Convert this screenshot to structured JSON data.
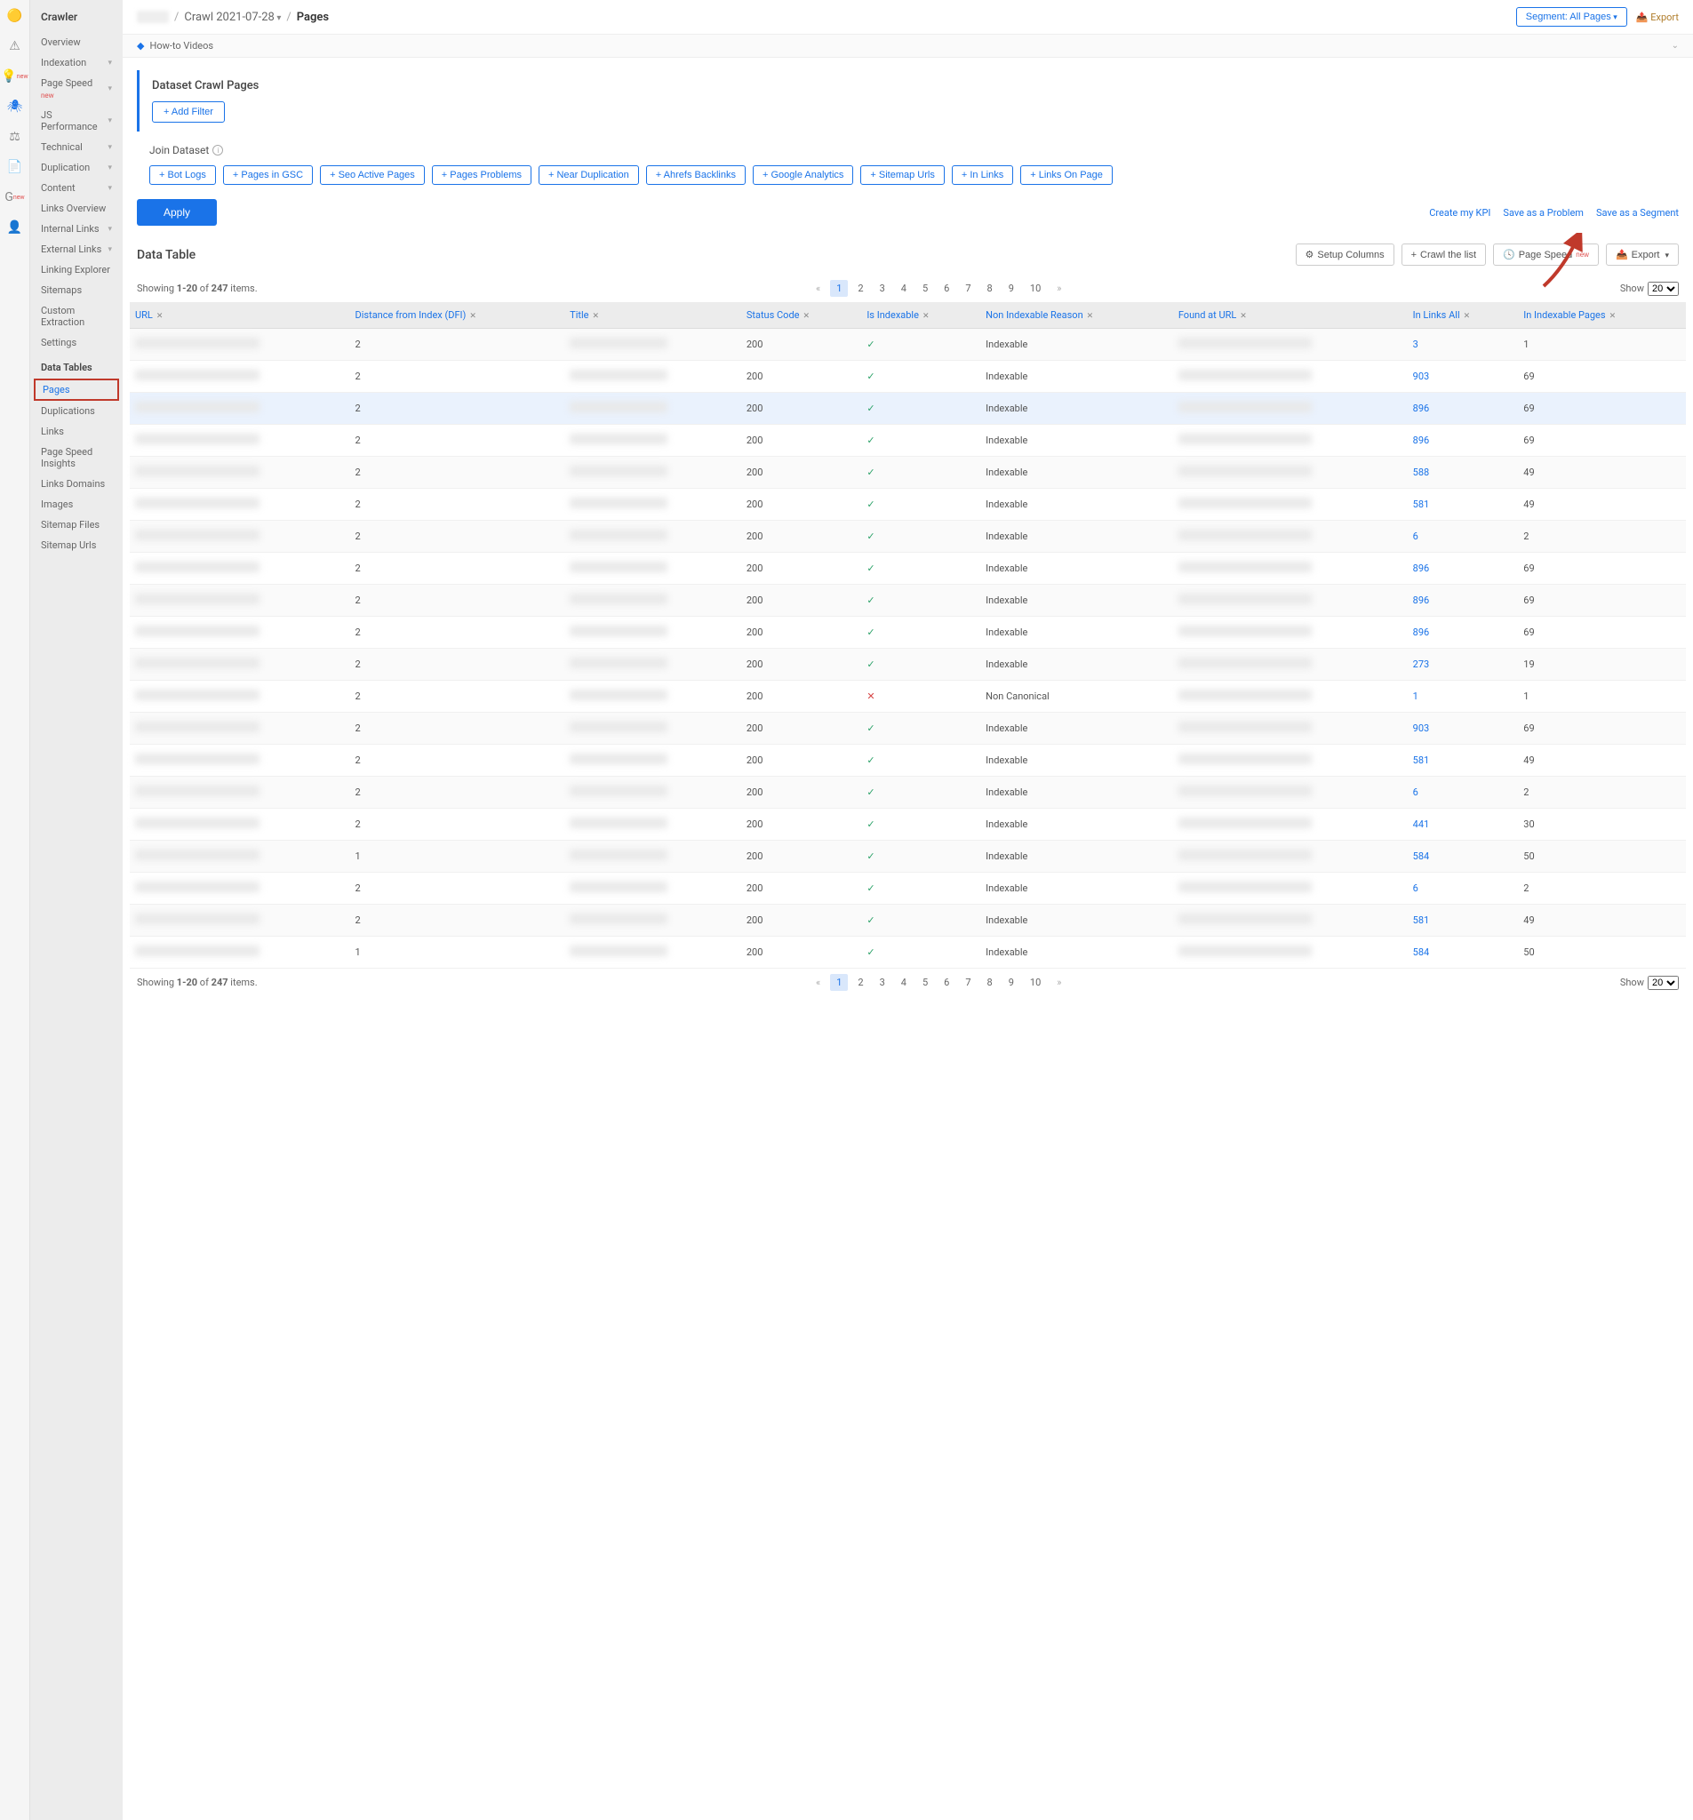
{
  "sidebar": {
    "title": "Crawler",
    "items": [
      {
        "label": "Overview",
        "expandable": false
      },
      {
        "label": "Indexation",
        "expandable": true
      },
      {
        "label": "Page Speed",
        "expandable": true,
        "new": true
      },
      {
        "label": "JS Performance",
        "expandable": true
      },
      {
        "label": "Technical",
        "expandable": true
      },
      {
        "label": "Duplication",
        "expandable": true
      },
      {
        "label": "Content",
        "expandable": true
      },
      {
        "label": "Links Overview",
        "expandable": false
      },
      {
        "label": "Internal Links",
        "expandable": true
      },
      {
        "label": "External Links",
        "expandable": true
      },
      {
        "label": "Linking Explorer",
        "expandable": false
      },
      {
        "label": "Sitemaps",
        "expandable": false
      },
      {
        "label": "Custom Extraction",
        "expandable": false
      },
      {
        "label": "Settings",
        "expandable": false
      }
    ],
    "tables_section": "Data Tables",
    "tables": [
      {
        "label": "Pages",
        "highlighted": true
      },
      {
        "label": "Duplications"
      },
      {
        "label": "Links"
      },
      {
        "label": "Page Speed Insights"
      },
      {
        "label": "Links Domains"
      },
      {
        "label": "Images"
      },
      {
        "label": "Sitemap Files"
      },
      {
        "label": "Sitemap Urls"
      }
    ]
  },
  "breadcrumb": {
    "crawl": "Crawl 2021-07-28",
    "current": "Pages"
  },
  "segment_button": "Segment: All Pages",
  "export_top": "Export",
  "howto": "How-to Videos",
  "panel": {
    "title": "Dataset Crawl Pages",
    "add_filter": "+ Add Filter"
  },
  "join": {
    "title": "Join Dataset",
    "chips": [
      "Bot Logs",
      "Pages in GSC",
      "Seo Active Pages",
      "Pages Problems",
      "Near Duplication",
      "Ahrefs Backlinks",
      "Google Analytics",
      "Sitemap Urls",
      "In Links",
      "Links On Page"
    ]
  },
  "apply": "Apply",
  "right_links": [
    "Create my KPI",
    "Save as a Problem",
    "Save as a Segment"
  ],
  "datatable": {
    "title": "Data Table",
    "setup": "Setup Columns",
    "crawl": "Crawl the list",
    "pagespeed": "Page Speed",
    "export": "Export",
    "showing_prefix": "Showing ",
    "showing_range": "1-20",
    "showing_of": " of ",
    "showing_total": "247",
    "showing_suffix": " items.",
    "show_label": "Show",
    "show_value": "20",
    "pages": [
      "1",
      "2",
      "3",
      "4",
      "5",
      "6",
      "7",
      "8",
      "9",
      "10"
    ]
  },
  "columns": [
    "URL",
    "Distance from Index (DFI)",
    "Title",
    "Status Code",
    "Is Indexable",
    "Non Indexable Reason",
    "Found at URL",
    "In Links All",
    "In Indexable Pages"
  ],
  "rows": [
    {
      "dfi": "2",
      "status": "200",
      "idx": true,
      "reason": "Indexable",
      "links": "3",
      "idxp": "1"
    },
    {
      "dfi": "2",
      "status": "200",
      "idx": true,
      "reason": "Indexable",
      "links": "903",
      "idxp": "69"
    },
    {
      "dfi": "2",
      "status": "200",
      "idx": true,
      "reason": "Indexable",
      "links": "896",
      "idxp": "69",
      "hover": true
    },
    {
      "dfi": "2",
      "status": "200",
      "idx": true,
      "reason": "Indexable",
      "links": "896",
      "idxp": "69"
    },
    {
      "dfi": "2",
      "status": "200",
      "idx": true,
      "reason": "Indexable",
      "links": "588",
      "idxp": "49"
    },
    {
      "dfi": "2",
      "status": "200",
      "idx": true,
      "reason": "Indexable",
      "links": "581",
      "idxp": "49"
    },
    {
      "dfi": "2",
      "status": "200",
      "idx": true,
      "reason": "Indexable",
      "links": "6",
      "idxp": "2"
    },
    {
      "dfi": "2",
      "status": "200",
      "idx": true,
      "reason": "Indexable",
      "links": "896",
      "idxp": "69"
    },
    {
      "dfi": "2",
      "status": "200",
      "idx": true,
      "reason": "Indexable",
      "links": "896",
      "idxp": "69"
    },
    {
      "dfi": "2",
      "status": "200",
      "idx": true,
      "reason": "Indexable",
      "links": "896",
      "idxp": "69"
    },
    {
      "dfi": "2",
      "status": "200",
      "idx": true,
      "reason": "Indexable",
      "links": "273",
      "idxp": "19"
    },
    {
      "dfi": "2",
      "status": "200",
      "idx": false,
      "reason": "Non Canonical",
      "links": "1",
      "idxp": "1"
    },
    {
      "dfi": "2",
      "status": "200",
      "idx": true,
      "reason": "Indexable",
      "links": "903",
      "idxp": "69"
    },
    {
      "dfi": "2",
      "status": "200",
      "idx": true,
      "reason": "Indexable",
      "links": "581",
      "idxp": "49"
    },
    {
      "dfi": "2",
      "status": "200",
      "idx": true,
      "reason": "Indexable",
      "links": "6",
      "idxp": "2"
    },
    {
      "dfi": "2",
      "status": "200",
      "idx": true,
      "reason": "Indexable",
      "links": "441",
      "idxp": "30"
    },
    {
      "dfi": "1",
      "status": "200",
      "idx": true,
      "reason": "Indexable",
      "links": "584",
      "idxp": "50"
    },
    {
      "dfi": "2",
      "status": "200",
      "idx": true,
      "reason": "Indexable",
      "links": "6",
      "idxp": "2"
    },
    {
      "dfi": "2",
      "status": "200",
      "idx": true,
      "reason": "Indexable",
      "links": "581",
      "idxp": "49"
    },
    {
      "dfi": "1",
      "status": "200",
      "idx": true,
      "reason": "Indexable",
      "links": "584",
      "idxp": "50"
    }
  ],
  "colors": {
    "primary": "#1a73e8",
    "arrow": "#c0392b"
  }
}
